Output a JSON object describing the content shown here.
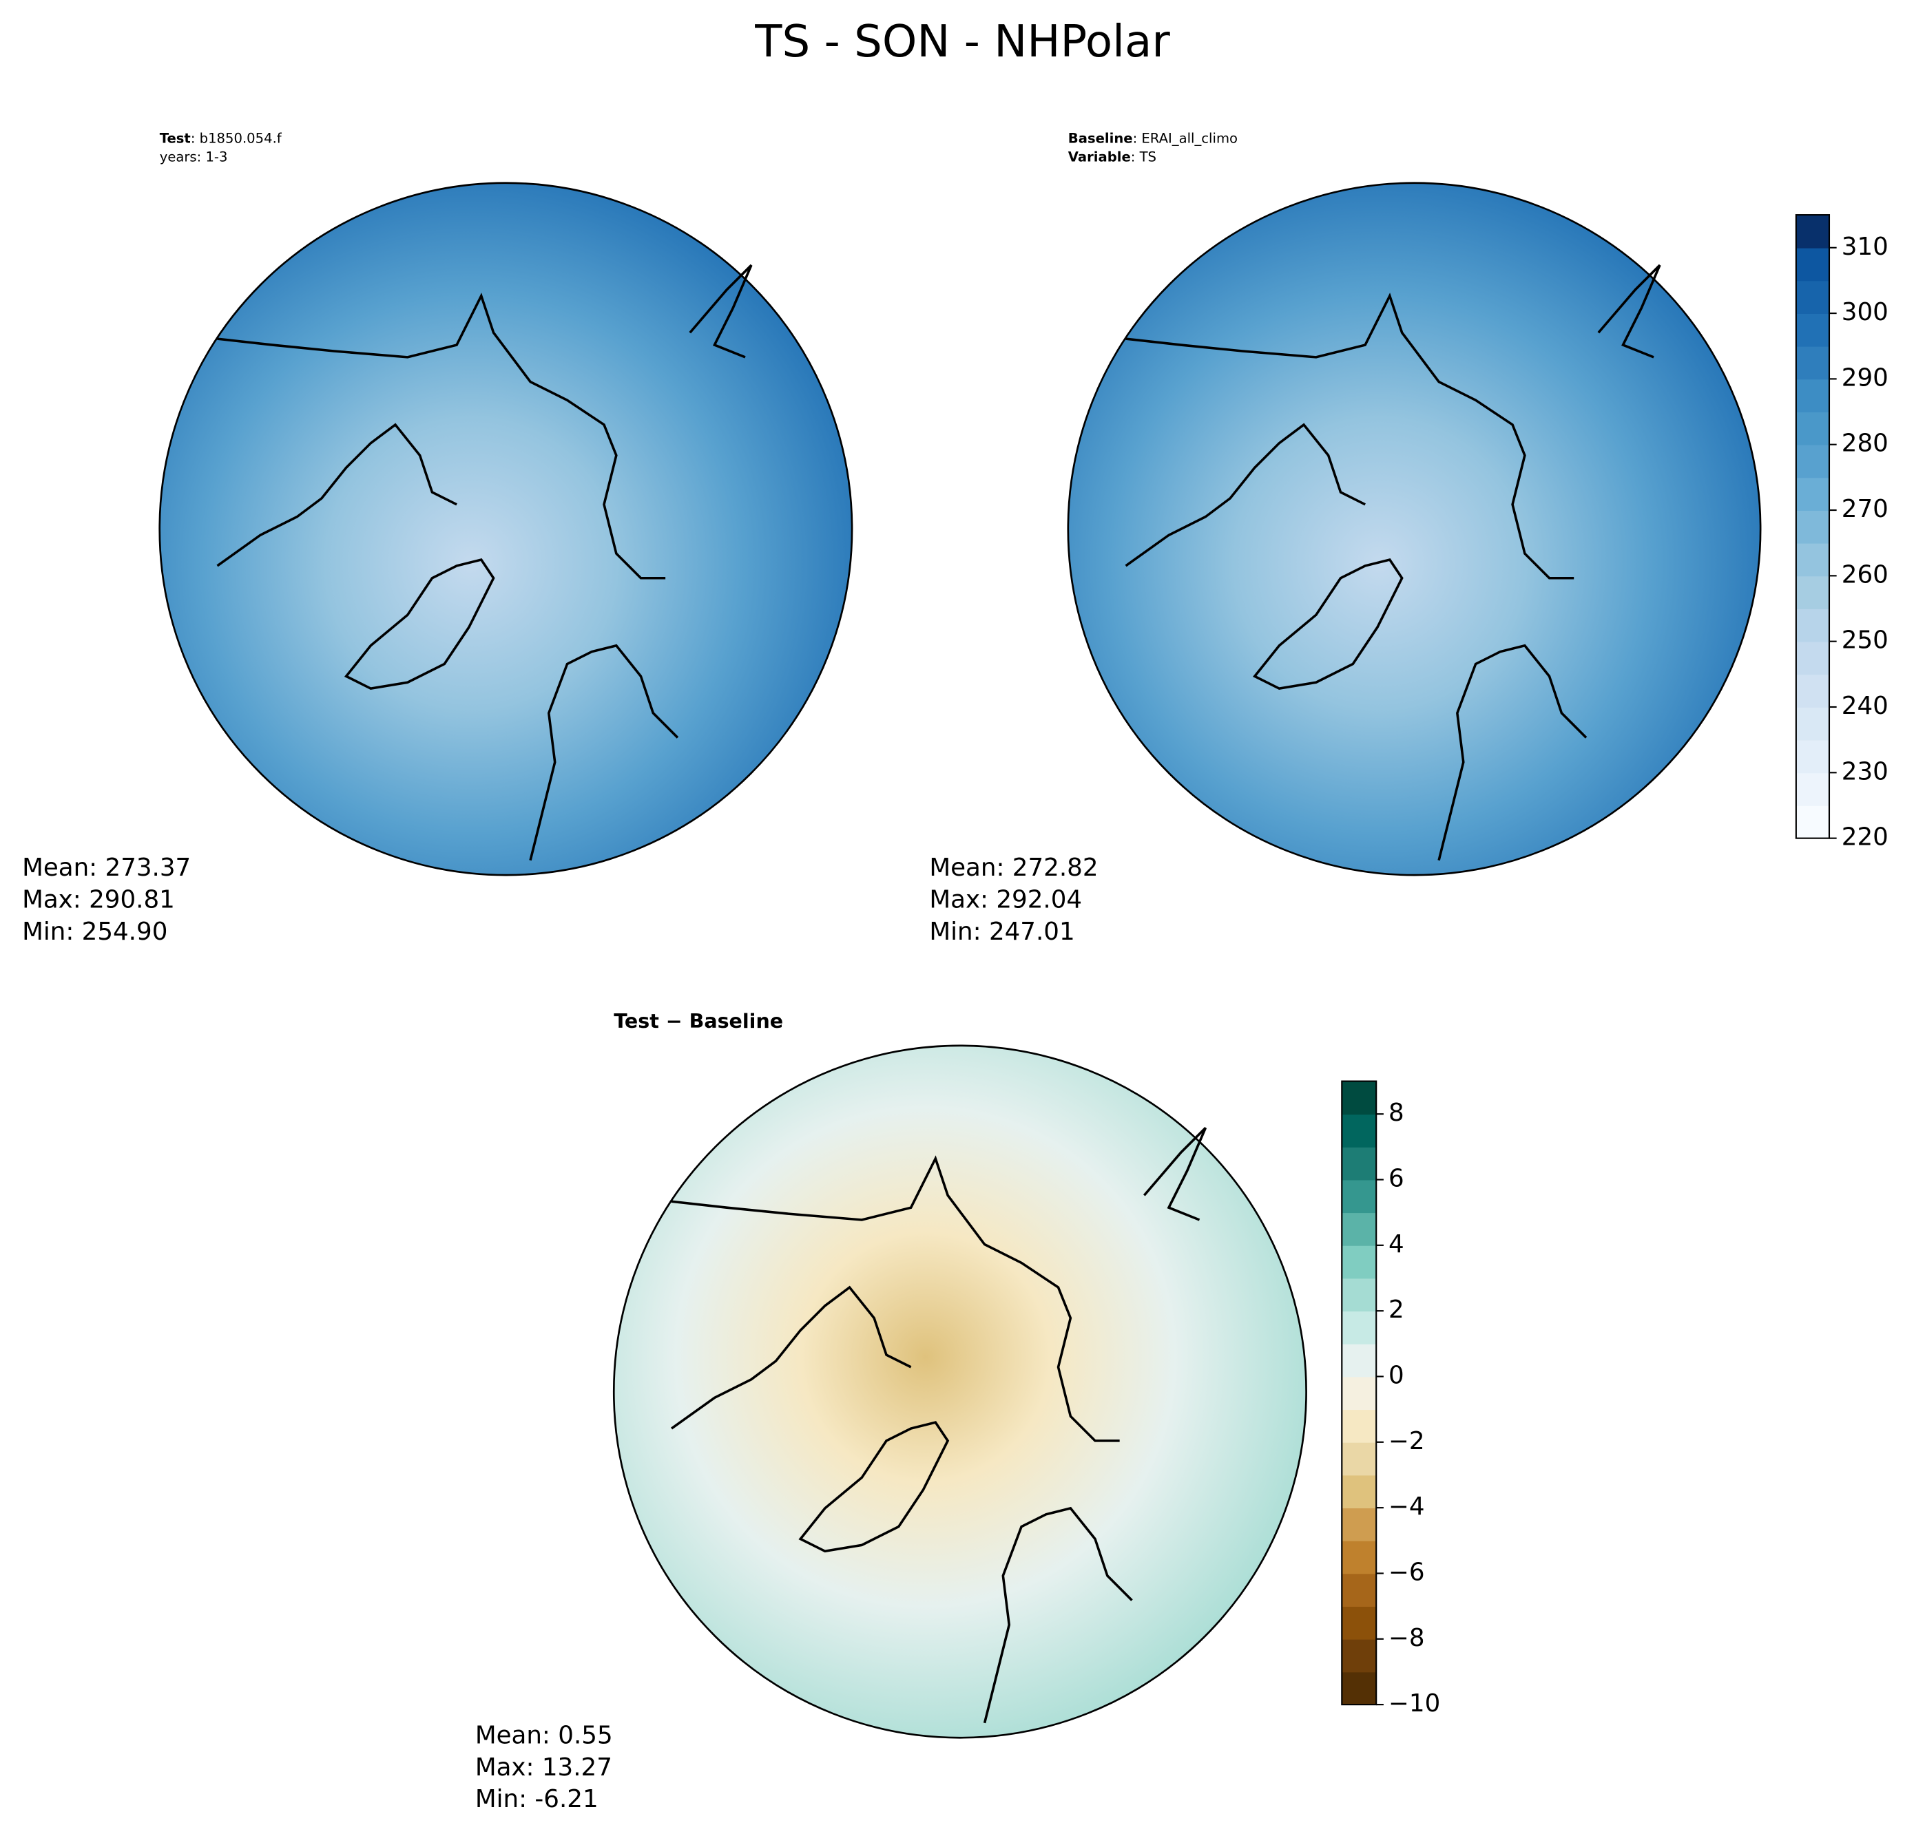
{
  "title": "TS - SON - NHPolar",
  "chart_data": [
    {
      "type": "map",
      "header": [
        {
          "key": "Test",
          "value": ": b1850.054.f"
        },
        {
          "value": "years: 1-3"
        }
      ],
      "stats": [
        "Mean: 273.37",
        "Max: 290.81",
        "Min: 254.90"
      ],
      "palette": "blues"
    },
    {
      "type": "map",
      "header": [
        {
          "key": "Baseline",
          "value": ": ERAI_all_climo"
        },
        {
          "key": "Variable",
          "value": ": TS"
        }
      ],
      "stats": [
        "Mean: 272.82",
        "Max: 292.04",
        "Min: 247.01"
      ],
      "palette": "blues",
      "colorbar": {
        "ylim": [
          220,
          315
        ],
        "yticks": [
          220,
          230,
          240,
          250,
          260,
          270,
          280,
          290,
          300,
          310
        ],
        "colors": [
          "#f7fbff",
          "#edf4fc",
          "#e3eef9",
          "#d9e8f5",
          "#d0e1f2",
          "#c4daee",
          "#b7d4ea",
          "#a6cde2",
          "#94c4df",
          "#7fb9da",
          "#6aaed6",
          "#58a1cf",
          "#4a98c9",
          "#3d8dc4",
          "#2f7ebc",
          "#2171b5",
          "#1764ab",
          "#0d57a1",
          "#08306b"
        ]
      }
    },
    {
      "type": "map",
      "header": [
        {
          "key": "Test − Baseline"
        }
      ],
      "stats": [
        "Mean:  0.55",
        "Max: 13.27",
        "Min: -6.21"
      ],
      "palette": "brbg",
      "colorbar": {
        "ylim": [
          -10,
          9
        ],
        "yticks": [
          {
            "value": -10,
            "label": "−10"
          },
          {
            "value": -8,
            "label": "−8"
          },
          {
            "value": -6,
            "label": "−6"
          },
          {
            "value": -4,
            "label": "−4"
          },
          {
            "value": -2,
            "label": "−2"
          },
          0,
          2,
          4,
          6,
          8
        ],
        "colors": [
          "#543005",
          "#6f3f0a",
          "#8c510a",
          "#a6661a",
          "#bf812d",
          "#cf9d50",
          "#dfc27d",
          "#ead7a6",
          "#f6e8c3",
          "#f5f0e0",
          "#e6f1ef",
          "#c7eae5",
          "#a5dcd3",
          "#80cdc1",
          "#5bb3a8",
          "#35978f",
          "#1d7d75",
          "#01665e",
          "#004b40"
        ]
      }
    }
  ]
}
